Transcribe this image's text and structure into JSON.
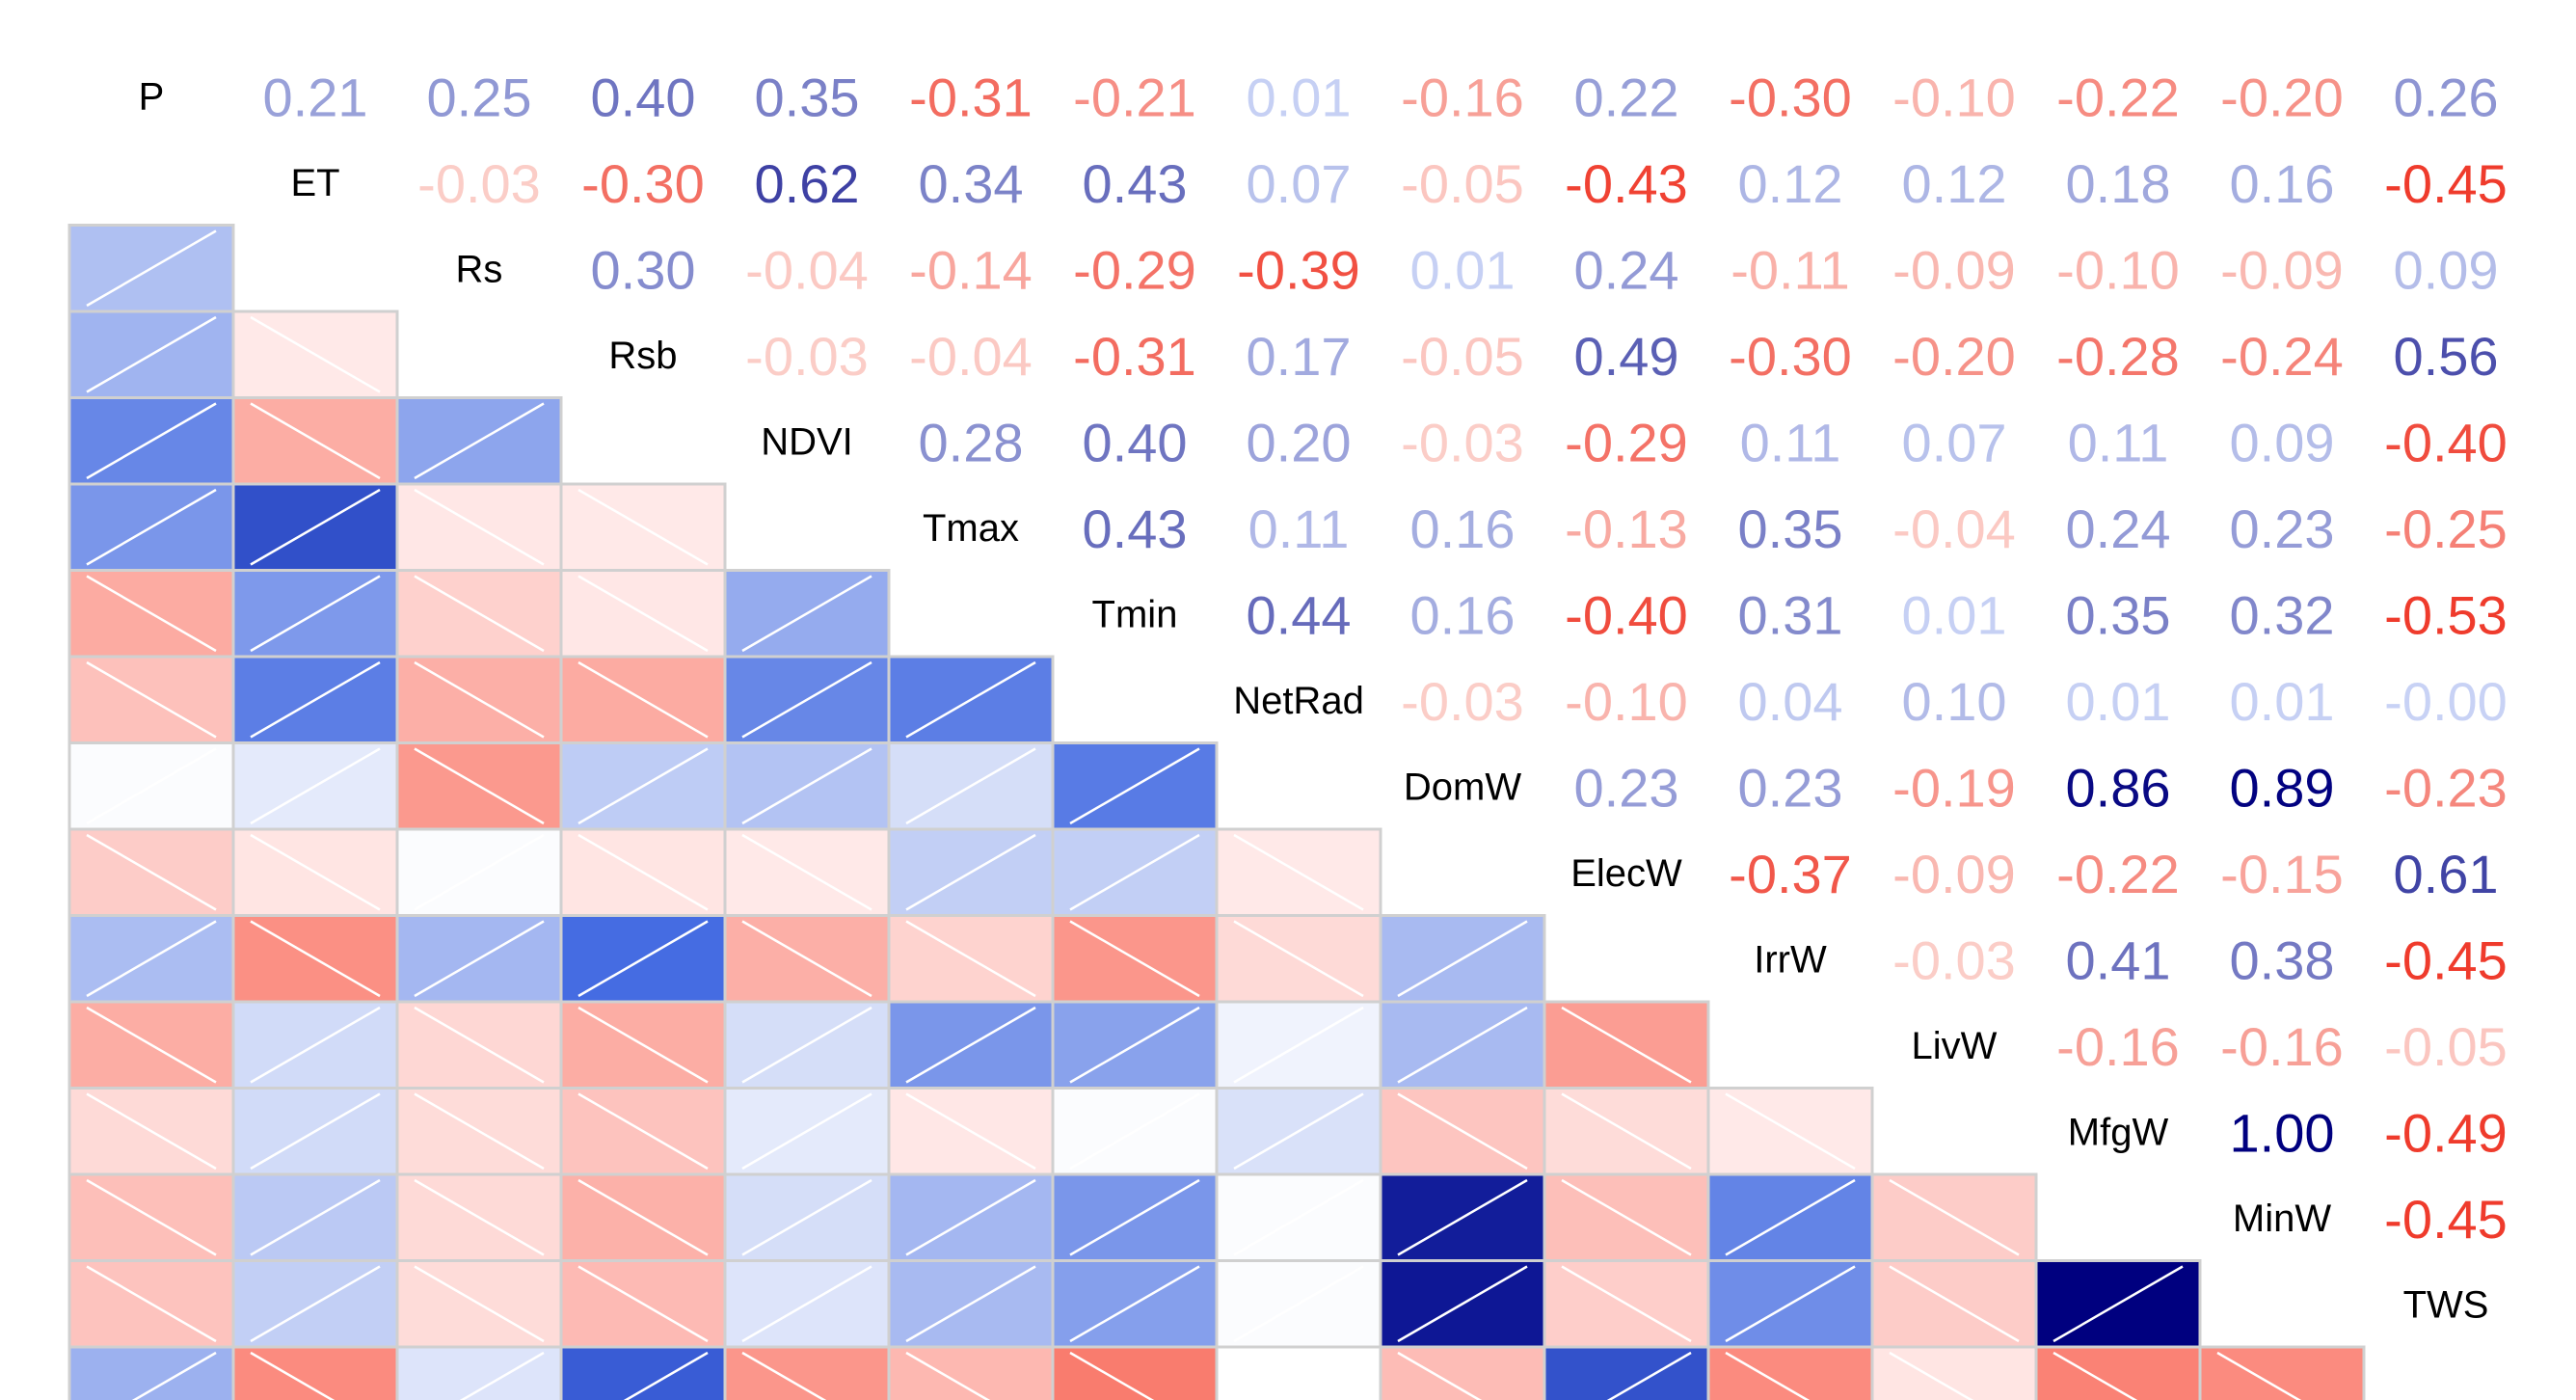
{
  "chart_data": {
    "type": "heatmap",
    "title": "",
    "variables": [
      "P",
      "ET",
      "Rs",
      "Rsb",
      "NDVI",
      "Tmax",
      "Tmin",
      "NetRad",
      "DomW",
      "ElecW",
      "IrrW",
      "LivW",
      "MfgW",
      "MinW",
      "TWS"
    ],
    "upper_labels": [
      [
        "",
        "0.21",
        "0.25",
        "0.40",
        "0.35",
        "-0.31",
        "-0.21",
        "0.01",
        "-0.16",
        "0.22",
        "-0.30",
        "-0.10",
        "-0.22",
        "-0.20",
        "0.26"
      ],
      [
        "",
        "",
        "-0.03",
        "-0.30",
        "0.62",
        "0.34",
        "0.43",
        "0.07",
        "-0.05",
        "-0.43",
        "0.12",
        "0.12",
        "0.18",
        "0.16",
        "-0.45"
      ],
      [
        "",
        "",
        "",
        "0.30",
        "-0.04",
        "-0.14",
        "-0.29",
        "-0.39",
        "0.01",
        "0.24",
        "-0.11",
        "-0.09",
        "-0.10",
        "-0.09",
        "0.09"
      ],
      [
        "",
        "",
        "",
        "",
        "-0.03",
        "-0.04",
        "-0.31",
        "0.17",
        "-0.05",
        "0.49",
        "-0.30",
        "-0.20",
        "-0.28",
        "-0.24",
        "0.56"
      ],
      [
        "",
        "",
        "",
        "",
        "",
        "0.28",
        "0.40",
        "0.20",
        "-0.03",
        "-0.29",
        "0.11",
        "0.07",
        "0.11",
        "0.09",
        "-0.40"
      ],
      [
        "",
        "",
        "",
        "",
        "",
        "",
        "0.43",
        "0.11",
        "0.16",
        "-0.13",
        "0.35",
        "-0.04",
        "0.24",
        "0.23",
        "-0.25"
      ],
      [
        "",
        "",
        "",
        "",
        "",
        "",
        "",
        "0.44",
        "0.16",
        "-0.40",
        "0.31",
        "0.01",
        "0.35",
        "0.32",
        "-0.53"
      ],
      [
        "",
        "",
        "",
        "",
        "",
        "",
        "",
        "",
        "-0.03",
        "-0.10",
        "0.04",
        "0.10",
        "0.01",
        "0.01",
        "-0.00"
      ],
      [
        "",
        "",
        "",
        "",
        "",
        "",
        "",
        "",
        "",
        "0.23",
        "0.23",
        "-0.19",
        "0.86",
        "0.89",
        "-0.23"
      ],
      [
        "",
        "",
        "",
        "",
        "",
        "",
        "",
        "",
        "",
        "",
        "-0.37",
        "-0.09",
        "-0.22",
        "-0.15",
        "0.61"
      ],
      [
        "",
        "",
        "",
        "",
        "",
        "",
        "",
        "",
        "",
        "",
        "",
        "-0.03",
        "0.41",
        "0.38",
        "-0.45"
      ],
      [
        "",
        "",
        "",
        "",
        "",
        "",
        "",
        "",
        "",
        "",
        "",
        "",
        "-0.16",
        "-0.16",
        "-0.05"
      ],
      [
        "",
        "",
        "",
        "",
        "",
        "",
        "",
        "",
        "",
        "",
        "",
        "",
        "",
        "1.00",
        "-0.49"
      ],
      [
        "",
        "",
        "",
        "",
        "",
        "",
        "",
        "",
        "",
        "",
        "",
        "",
        "",
        "",
        "-0.45"
      ],
      [
        "",
        "",
        "",
        "",
        "",
        "",
        "",
        "",
        "",
        "",
        "",
        "",
        "",
        "",
        ""
      ]
    ],
    "colors": {
      "positive": "#00007f",
      "negative": "#ef3b2c",
      "neutral": "#ffffff",
      "border": "#d0d0d0"
    },
    "lower_triangle": "colored cells with diagonal stroke (positive: ascending, negative: descending)",
    "upper_triangle": "coefficient numbers colored by value",
    "range": [
      -1,
      1
    ]
  }
}
